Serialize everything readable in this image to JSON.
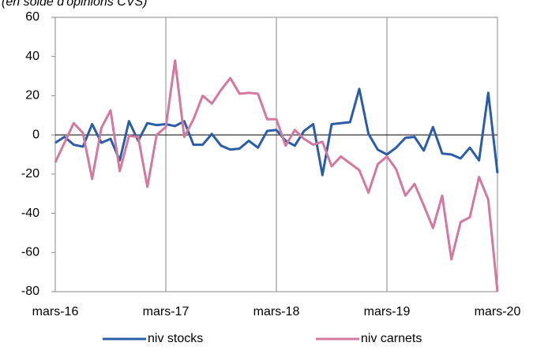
{
  "chart_data": {
    "type": "line",
    "subtitle": "(en solde d'opinions CVS)",
    "categories": [
      "mars-16",
      null,
      null,
      null,
      null,
      null,
      null,
      null,
      null,
      null,
      null,
      null,
      "mars-17",
      null,
      null,
      null,
      null,
      null,
      null,
      null,
      null,
      null,
      null,
      null,
      "mars-18",
      null,
      null,
      null,
      null,
      null,
      null,
      null,
      null,
      null,
      null,
      null,
      "mars-19",
      null,
      null,
      null,
      null,
      null,
      null,
      null,
      null,
      null,
      null,
      null,
      "mars-20"
    ],
    "series": [
      {
        "name": "niv stocks",
        "color": "#2a5ca8",
        "values": [
          -4,
          -1,
          -5,
          -6,
          5.5,
          -4,
          -2,
          -13,
          7,
          -3,
          6,
          5,
          5.5,
          4.5,
          7,
          -5,
          -5,
          0.5,
          -5.5,
          -7.5,
          -7,
          -3,
          -6.5,
          2,
          2.5,
          -3,
          -5.5,
          2,
          5.5,
          -20.5,
          5.5,
          6,
          6.5,
          23.5,
          0.5,
          -7.5,
          -10,
          -6.5,
          -1.5,
          -1,
          -8,
          4,
          -9.5,
          -10,
          -12,
          -6.5,
          -13,
          21.5,
          -19.5
        ]
      },
      {
        "name": "niv carnets",
        "color": "#d4789f",
        "values": [
          -14,
          -4,
          6,
          1,
          -22.5,
          3.5,
          12.5,
          -18.5,
          -0.5,
          -1,
          -26.5,
          0,
          4,
          38,
          -1,
          8,
          20,
          16,
          23,
          29,
          21,
          21.5,
          21,
          8,
          8,
          -5.5,
          2.5,
          -2,
          -5,
          -3.5,
          -16,
          -11,
          -14.5,
          -18,
          -29.5,
          -15,
          -11,
          -17.5,
          -31,
          -25,
          -36,
          -47.5,
          -31,
          -63.5,
          -44.5,
          -42,
          -21.5,
          -33,
          -80
        ]
      }
    ],
    "ylim": [
      -80,
      60
    ],
    "yticks": [
      -80,
      -60,
      -40,
      -20,
      0,
      20,
      40,
      60
    ]
  }
}
